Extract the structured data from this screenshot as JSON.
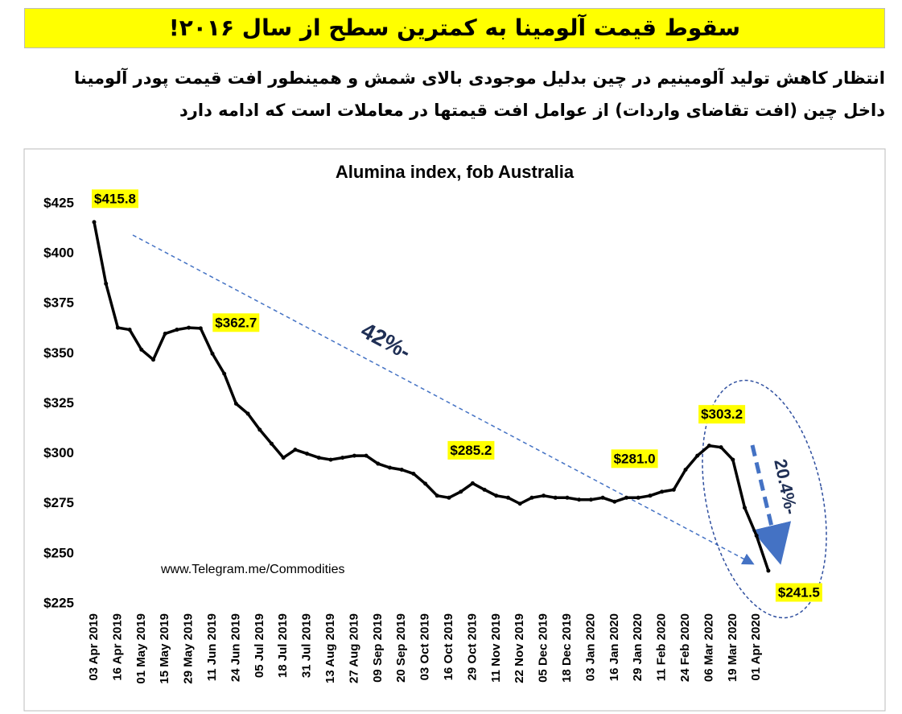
{
  "header": {
    "title": "سقوط قیمت آلومینا به کمترین سطح از سال ۲۰۱۶!",
    "subtitle_lines": [
      "انتظار کاهش تولید آلومینیم در چین بدلیل موجودی بالای شمش و همینطور افت قیمت پودر آلومینا",
      "داخل چین (افت تقاضای واردات) از عوامل افت قیمتها در معاملات است که ادامه دارد"
    ]
  },
  "chart_data": {
    "type": "line",
    "title": "Alumina index, fob Australia",
    "categories": [
      "03 Apr 2019",
      null,
      "16 Apr 2019",
      null,
      "01 May 2019",
      null,
      "15 May 2019",
      null,
      "29 May 2019",
      null,
      "11 Jun 2019",
      null,
      "24 Jun 2019",
      null,
      "05 Jul 2019",
      null,
      "18 Jul 2019",
      null,
      "31 Jul 2019",
      null,
      "13 Aug 2019",
      null,
      "27 Aug 2019",
      null,
      "09 Sep 2019",
      null,
      "20 Sep 2019",
      null,
      "03 Oct 2019",
      null,
      "16 Oct 2019",
      null,
      "29 Oct 2019",
      null,
      "11 Nov 2019",
      null,
      "22 Nov 2019",
      null,
      "05 Dec 2019",
      null,
      "18 Dec 2019",
      null,
      "03 Jan 2020",
      null,
      "16 Jan 2020",
      null,
      "29 Jan 2020",
      null,
      "11 Feb 2020",
      null,
      "24 Feb 2020",
      null,
      "06 Mar 2020",
      null,
      "19 Mar 2020",
      null,
      "01 Apr 2020",
      null
    ],
    "series": [
      {
        "name": "Alumina index",
        "color": "#000000",
        "values": [
          415.8,
          385,
          363,
          362,
          352,
          347,
          360,
          362,
          363,
          362.7,
          350,
          340,
          325,
          320,
          312,
          305,
          298,
          302,
          300,
          298,
          297,
          298,
          299,
          299,
          295,
          293,
          292,
          290,
          285,
          279,
          278,
          281,
          285.2,
          282,
          279,
          278,
          275,
          278,
          279,
          278,
          278,
          277,
          277,
          278,
          276,
          278,
          278,
          279,
          281,
          282,
          292,
          299,
          304,
          303.2,
          297,
          273,
          259,
          241.5
        ],
        "value_labels": [
          "$415.8",
          null,
          null,
          null,
          null,
          null,
          null,
          null,
          null,
          "$362.7",
          null,
          null,
          null,
          null,
          null,
          null,
          null,
          null,
          null,
          null,
          null,
          null,
          null,
          null,
          null,
          null,
          null,
          null,
          null,
          null,
          null,
          null,
          "$285.2",
          null,
          null,
          null,
          null,
          null,
          null,
          null,
          null,
          null,
          null,
          null,
          null,
          null,
          null,
          null,
          "$281.0",
          null,
          null,
          null,
          null,
          "$303.2",
          null,
          null,
          null,
          "$241.5"
        ]
      }
    ],
    "ylim": [
      225,
      425
    ],
    "yticks": [
      {
        "value": 225,
        "label": "$225"
      },
      {
        "value": 250,
        "label": "$250"
      },
      {
        "value": 275,
        "label": "$275"
      },
      {
        "value": 300,
        "label": "$300"
      },
      {
        "value": 325,
        "label": "$325"
      },
      {
        "value": 350,
        "label": "$350"
      },
      {
        "value": 375,
        "label": "$375"
      },
      {
        "value": 400,
        "label": "$400"
      },
      {
        "value": 425,
        "label": "$425"
      }
    ],
    "grid": false,
    "annotations": [
      "42%-",
      "20.4%-",
      "www.Telegram.me/Commodities"
    ]
  }
}
